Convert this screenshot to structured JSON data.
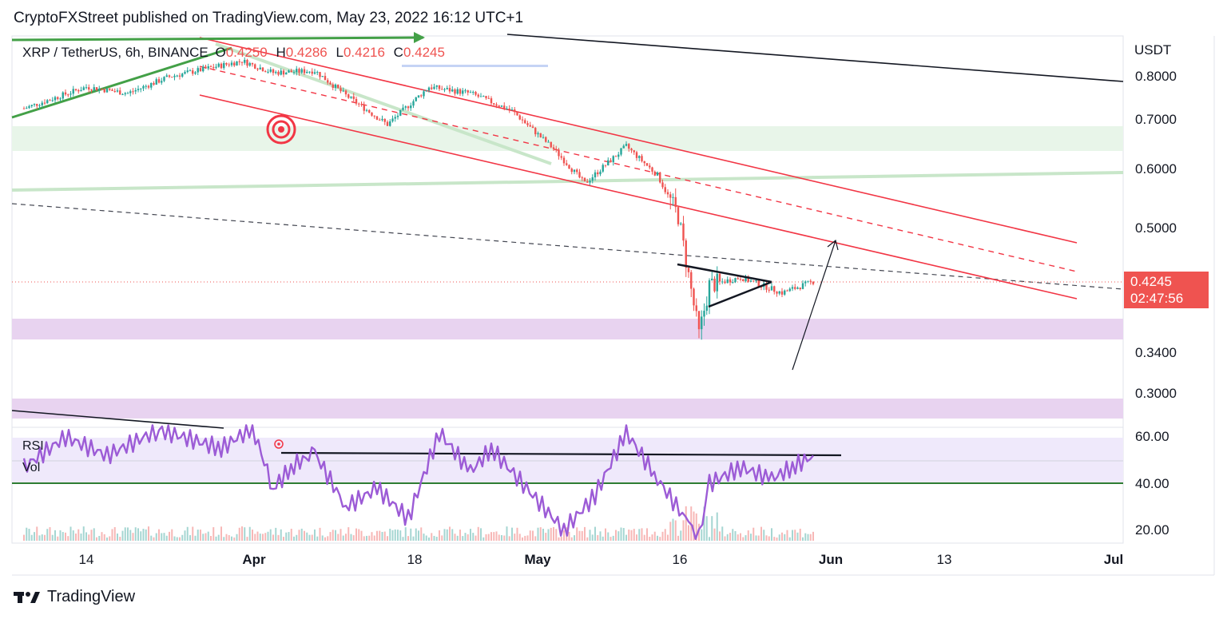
{
  "header": {
    "publisher_line": "CryptoFXStreet published on TradingView.com, May 23, 2022 16:12 UTC+1"
  },
  "legend": {
    "symbol": "XRP / TetherUS, 6h, BINANCE",
    "open_label": "O",
    "open_value": "0.4250",
    "high_label": "H",
    "high_value": "0.4286",
    "low_label": "L",
    "low_value": "0.4216",
    "close_label": "C",
    "close_value": "0.4245"
  },
  "last_price": {
    "value": "0.4245",
    "countdown": "02:47:56"
  },
  "footer": {
    "brand": "TradingView"
  },
  "colors": {
    "bull": "#26a69a",
    "bear": "#ef5350",
    "rsi_line": "#9c5bd6",
    "channel": "#f23645",
    "green_zone": "#e8f5e9",
    "purple_zone": "#e8d3f0",
    "wedge_arrow": "#43a047"
  },
  "chart_data": [
    {
      "type": "candlestick",
      "title": "XRP / TetherUS, 6h, BINANCE",
      "ylabel": "USDT",
      "y_scale": "log",
      "ylim": [
        0.27,
        0.85
      ],
      "y_ticks": [
        0.8,
        0.7,
        0.6,
        0.5,
        0.424,
        0.34,
        0.3
      ],
      "y_tick_labels": [
        "0.8000",
        "0.7000",
        "0.6000",
        "0.5000",
        "",
        "0.3400",
        "0.3000"
      ],
      "x_ticks": [
        "14",
        "Apr",
        "18",
        "May",
        "16",
        "Jun",
        "13",
        "Jul"
      ],
      "close_path": [
        {
          "date": "2022-03-08",
          "close": 0.725
        },
        {
          "date": "2022-03-14",
          "close": 0.775
        },
        {
          "date": "2022-03-18",
          "close": 0.76
        },
        {
          "date": "2022-03-22",
          "close": 0.8
        },
        {
          "date": "2022-03-29",
          "close": 0.84
        },
        {
          "date": "2022-04-01",
          "close": 0.81
        },
        {
          "date": "2022-04-05",
          "close": 0.815
        },
        {
          "date": "2022-04-08",
          "close": 0.755
        },
        {
          "date": "2022-04-12",
          "close": 0.69
        },
        {
          "date": "2022-04-16",
          "close": 0.775
        },
        {
          "date": "2022-04-20",
          "close": 0.76
        },
        {
          "date": "2022-04-24",
          "close": 0.72
        },
        {
          "date": "2022-04-28",
          "close": 0.64
        },
        {
          "date": "2022-05-01",
          "close": 0.575
        },
        {
          "date": "2022-05-05",
          "close": 0.645
        },
        {
          "date": "2022-05-08",
          "close": 0.59
        },
        {
          "date": "2022-05-10",
          "close": 0.52
        },
        {
          "date": "2022-05-12",
          "close": 0.36
        },
        {
          "date": "2022-05-13",
          "close": 0.42
        },
        {
          "date": "2022-05-16",
          "close": 0.43
        },
        {
          "date": "2022-05-20",
          "close": 0.41
        },
        {
          "date": "2022-05-23",
          "close": 0.4245
        }
      ],
      "zones": [
        {
          "name": "green-resistance-zone",
          "from": 0.64,
          "to": 0.685
        },
        {
          "name": "purple-support-zone-1",
          "from": 0.365,
          "to": 0.385
        },
        {
          "name": "purple-support-zone-2",
          "from": 0.285,
          "to": 0.3
        }
      ]
    },
    {
      "type": "line",
      "pane": "RSI",
      "ylim": [
        15,
        65
      ],
      "y_ticks": [
        60,
        40,
        20
      ],
      "y_tick_labels": [
        "60.00",
        "40.00",
        "20.00"
      ],
      "series": [
        {
          "name": "RSI",
          "points": [
            {
              "date": "2022-03-08",
              "value": 47
            },
            {
              "date": "2022-03-12",
              "value": 60
            },
            {
              "date": "2022-03-16",
              "value": 52
            },
            {
              "date": "2022-03-21",
              "value": 63
            },
            {
              "date": "2022-03-27",
              "value": 55
            },
            {
              "date": "2022-03-30",
              "value": 64
            },
            {
              "date": "2022-04-01",
              "value": 38
            },
            {
              "date": "2022-04-03",
              "value": 48
            },
            {
              "date": "2022-04-05",
              "value": 53
            },
            {
              "date": "2022-04-08",
              "value": 30
            },
            {
              "date": "2022-04-11",
              "value": 38
            },
            {
              "date": "2022-04-14",
              "value": 25
            },
            {
              "date": "2022-04-17",
              "value": 62
            },
            {
              "date": "2022-04-20",
              "value": 45
            },
            {
              "date": "2022-04-22",
              "value": 55
            },
            {
              "date": "2022-04-26",
              "value": 35
            },
            {
              "date": "2022-04-29",
              "value": 20
            },
            {
              "date": "2022-05-02",
              "value": 35
            },
            {
              "date": "2022-05-05",
              "value": 62
            },
            {
              "date": "2022-05-08",
              "value": 42
            },
            {
              "date": "2022-05-11",
              "value": 23
            },
            {
              "date": "2022-05-12",
              "value": 17
            },
            {
              "date": "2022-05-13",
              "value": 40
            },
            {
              "date": "2022-05-16",
              "value": 47
            },
            {
              "date": "2022-05-19",
              "value": 42
            },
            {
              "date": "2022-05-21",
              "value": 47
            },
            {
              "date": "2022-05-23",
              "value": 52
            }
          ]
        }
      ]
    }
  ],
  "axis_labels": {
    "usdt": "USDT",
    "rsi": "RSI",
    "vol": "Vol"
  }
}
